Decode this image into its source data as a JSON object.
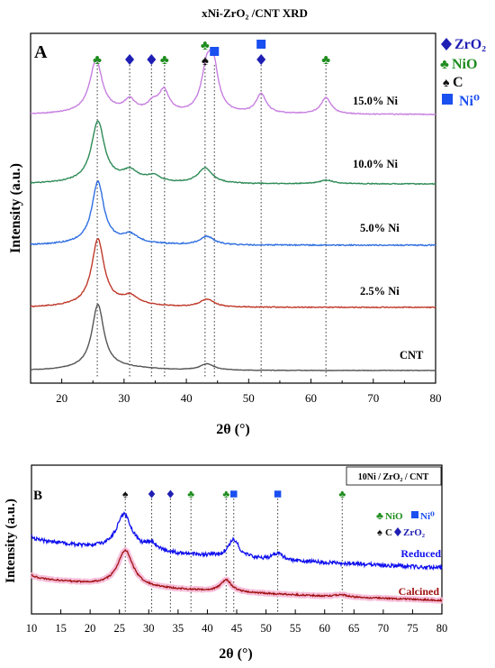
{
  "figure_title": "xNi-ZrO₂ /CNT XRD",
  "colors": {
    "zro2": "#1f1fb4",
    "nio": "#1e8c1e",
    "carbon": "#111111",
    "ni0": "#1a4ff0",
    "trace_15": "#c77fe0",
    "trace_10": "#2e8b57",
    "trace_5": "#2f6fe0",
    "trace_2_5": "#c0392b",
    "trace_cnt": "#555555",
    "reduced": "#1010ee",
    "calcined": "#a01010",
    "calcined_halo": "#f5b8d6"
  },
  "legend_a": {
    "zro2_label": "ZrO₂",
    "nio_label": "NiO",
    "c_label": "C",
    "ni0_label": "Ni⁰"
  },
  "legend_b": {
    "box_label": "10Ni / ZrO₂ / CNT",
    "nio_label": "NiO",
    "ni0_label": "Ni⁰",
    "c_label": "C",
    "zro2_label": "ZrO₂"
  },
  "chart_data": [
    {
      "panel": "A",
      "type": "line",
      "xlabel": "2θ (°)",
      "ylabel": "Intensity (a.u.)",
      "xlim": [
        15,
        80
      ],
      "xticks": [
        20,
        30,
        40,
        50,
        60,
        70,
        80
      ],
      "grid": false,
      "reference_lines_x": [
        25.7,
        30.9,
        34.4,
        36.5,
        43.0,
        44.5,
        52.0,
        62.4
      ],
      "markers": [
        {
          "x": 25.7,
          "phase": "NiO"
        },
        {
          "x": 30.9,
          "phase": "ZrO2"
        },
        {
          "x": 34.4,
          "phase": "ZrO2"
        },
        {
          "x": 36.5,
          "phase": "NiO"
        },
        {
          "x": 43.0,
          "phase": "NiO"
        },
        {
          "x": 43.0,
          "phase": "C"
        },
        {
          "x": 44.5,
          "phase": "Ni0"
        },
        {
          "x": 52.0,
          "phase": "Ni0"
        },
        {
          "x": 52.0,
          "phase": "ZrO2"
        },
        {
          "x": 62.4,
          "phase": "NiO"
        }
      ],
      "series": [
        {
          "name": "15.0% Ni",
          "peaks": [
            [
              25.5,
              1.0
            ],
            [
              30.9,
              0.22
            ],
            [
              34.6,
              0.16
            ],
            [
              36.4,
              0.42
            ],
            [
              43.2,
              0.72
            ],
            [
              44.3,
              0.88
            ],
            [
              52.0,
              0.38
            ],
            [
              62.4,
              0.32
            ]
          ]
        },
        {
          "name": "10.0% Ni",
          "peaks": [
            [
              25.8,
              1.0
            ],
            [
              31.0,
              0.16
            ],
            [
              34.7,
              0.1
            ],
            [
              43.0,
              0.26
            ],
            [
              62.5,
              0.06
            ]
          ]
        },
        {
          "name": "5.0% Ni",
          "peaks": [
            [
              25.8,
              1.0
            ],
            [
              31.0,
              0.12
            ],
            [
              43.3,
              0.14
            ]
          ]
        },
        {
          "name": "2.5% Ni",
          "peaks": [
            [
              25.8,
              1.0
            ],
            [
              31.0,
              0.12
            ],
            [
              43.3,
              0.12
            ]
          ]
        },
        {
          "name": "CNT",
          "peaks": [
            [
              25.8,
              1.0
            ],
            [
              43.3,
              0.1
            ]
          ]
        }
      ]
    },
    {
      "panel": "B",
      "type": "line",
      "xlabel": "2θ (°)",
      "ylabel": "Intensity (a.u.)",
      "xlim": [
        10,
        80
      ],
      "xticks": [
        10,
        15,
        20,
        25,
        30,
        35,
        40,
        45,
        50,
        55,
        60,
        65,
        70,
        75,
        80
      ],
      "grid": false,
      "reference_lines_x": [
        26.0,
        30.5,
        33.7,
        37.2,
        43.2,
        44.5,
        52.0,
        63.0
      ],
      "markers": [
        {
          "x": 26.0,
          "phase": "C"
        },
        {
          "x": 30.5,
          "phase": "ZrO2"
        },
        {
          "x": 33.7,
          "phase": "ZrO2"
        },
        {
          "x": 37.2,
          "phase": "NiO"
        },
        {
          "x": 43.2,
          "phase": "NiO"
        },
        {
          "x": 44.5,
          "phase": "Ni0"
        },
        {
          "x": 52.0,
          "phase": "Ni0"
        },
        {
          "x": 63.0,
          "phase": "NiO"
        }
      ],
      "series": [
        {
          "name": "Reduced",
          "peaks": [
            [
              25.8,
              1.0
            ],
            [
              30.5,
              0.22
            ],
            [
              44.5,
              0.5
            ],
            [
              52.0,
              0.18
            ]
          ]
        },
        {
          "name": "Calcined",
          "peaks": [
            [
              26.0,
              1.0
            ],
            [
              43.2,
              0.33
            ],
            [
              62.8,
              0.06
            ]
          ]
        }
      ]
    }
  ]
}
